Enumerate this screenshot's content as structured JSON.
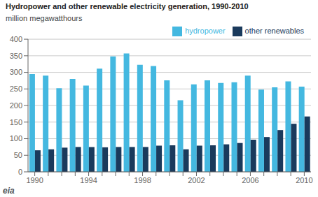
{
  "chart_data": {
    "type": "bar",
    "title": "Hydropower and other renewable electricity generation, 1990-2010",
    "subtitle": "million megawatthours",
    "annotations": [
      "eia"
    ],
    "categories": [
      "1990",
      null,
      null,
      null,
      "1994",
      null,
      null,
      null,
      "1998",
      null,
      null,
      null,
      "2002",
      null,
      null,
      null,
      "2006",
      null,
      null,
      null,
      "2010"
    ],
    "series": [
      {
        "name": "hydropower",
        "color": "#44b8e0",
        "values": [
          295,
          290,
          252,
          280,
          260,
          311,
          348,
          357,
          323,
          319,
          276,
          216,
          264,
          276,
          268,
          270,
          290,
          248,
          255,
          273,
          257
        ]
      },
      {
        "name": "other renewables",
        "color": "#1a3a5c",
        "values": [
          65,
          68,
          73,
          75,
          75,
          74,
          75,
          75,
          75,
          79,
          80,
          68,
          79,
          80,
          83,
          87,
          97,
          105,
          126,
          145,
          167
        ]
      }
    ],
    "ylim": [
      0,
      400
    ],
    "yticks": [
      0,
      50,
      100,
      150,
      200,
      250,
      300,
      350,
      400
    ],
    "grid": true,
    "legend": "upper right"
  }
}
